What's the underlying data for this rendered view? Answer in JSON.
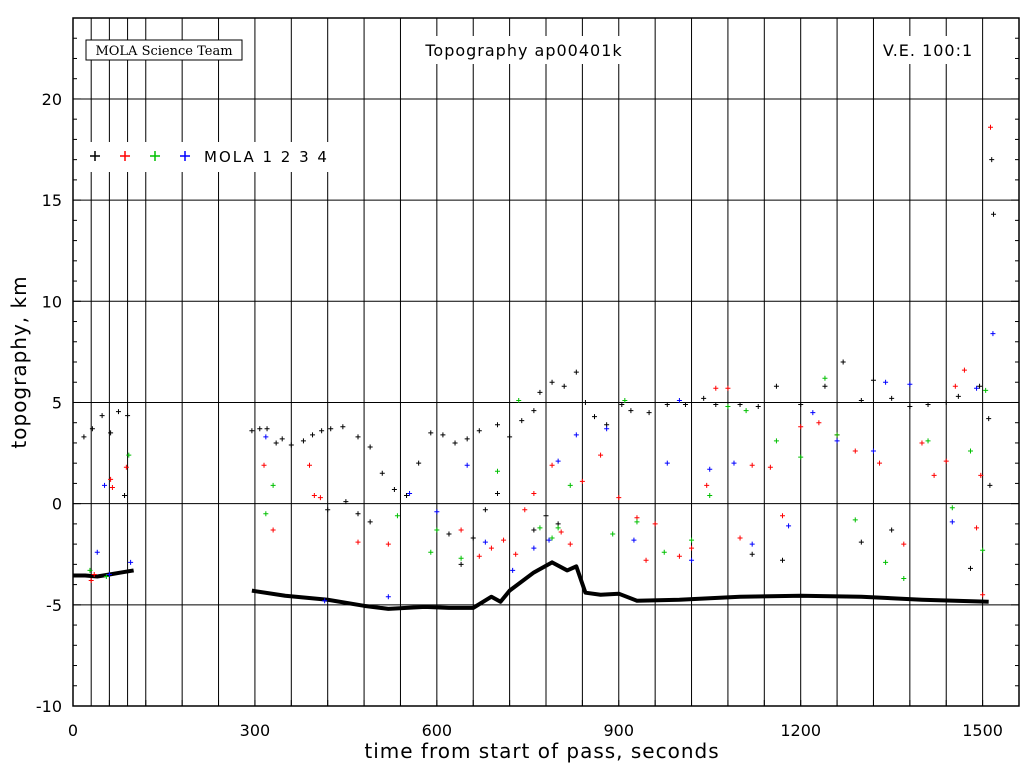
{
  "header": {
    "team_label": "MOLA Science Team",
    "title": "Topography ap00401k",
    "ve_label": "V.E. 100:1"
  },
  "legend": {
    "text": "MOLA 1 2 3 4",
    "entries": [
      {
        "name": "1",
        "color": "#000000"
      },
      {
        "name": "2",
        "color": "#ff0000"
      },
      {
        "name": "3",
        "color": "#00c000"
      },
      {
        "name": "4",
        "color": "#0000ff"
      }
    ]
  },
  "chart_data": {
    "type": "scatter",
    "title": "Topography ap00401k",
    "xlabel": "time from start of pass, seconds",
    "ylabel": "topography, km",
    "xlim": [
      0,
      1560
    ],
    "ylim": [
      -10,
      24
    ],
    "x_ticks": [
      0,
      300,
      600,
      900,
      1200,
      1500
    ],
    "y_ticks": [
      -10,
      -5,
      0,
      5,
      10,
      15,
      20
    ],
    "grid": true,
    "vertical_grid_x": [
      30,
      60,
      90,
      120,
      180,
      240,
      300,
      360,
      420,
      480,
      540,
      600,
      660,
      720,
      780,
      840,
      900,
      960,
      1020,
      1080,
      1140,
      1200,
      1260,
      1320,
      1380,
      1440,
      1500
    ],
    "ground_track": [
      [
        0,
        -3.55
      ],
      [
        20,
        -3.55
      ],
      [
        40,
        -3.6
      ],
      [
        60,
        -3.5
      ],
      [
        80,
        -3.4
      ],
      [
        100,
        -3.3
      ],
      null,
      [
        295,
        -4.3
      ],
      [
        350,
        -4.55
      ],
      [
        420,
        -4.75
      ],
      [
        480,
        -5.05
      ],
      [
        520,
        -5.2
      ],
      [
        580,
        -5.1
      ],
      [
        620,
        -5.15
      ],
      [
        660,
        -5.15
      ],
      [
        690,
        -4.6
      ],
      [
        705,
        -4.85
      ],
      [
        720,
        -4.3
      ],
      [
        760,
        -3.4
      ],
      [
        790,
        -2.9
      ],
      [
        815,
        -3.3
      ],
      [
        830,
        -3.1
      ],
      [
        845,
        -4.4
      ],
      [
        870,
        -4.5
      ],
      [
        900,
        -4.45
      ],
      [
        930,
        -4.8
      ],
      [
        1000,
        -4.75
      ],
      [
        1100,
        -4.6
      ],
      [
        1200,
        -4.55
      ],
      [
        1300,
        -4.6
      ],
      [
        1400,
        -4.75
      ],
      [
        1510,
        -4.85
      ]
    ],
    "series": [
      {
        "name": "1",
        "color": "#000000",
        "points": [
          [
            18,
            3.3
          ],
          [
            32,
            3.7
          ],
          [
            48,
            4.35
          ],
          [
            62,
            3.5
          ],
          [
            75,
            4.55
          ],
          [
            85,
            0.4
          ],
          [
            90,
            4.35
          ],
          [
            295,
            3.6
          ],
          [
            308,
            3.7
          ],
          [
            320,
            3.7
          ],
          [
            335,
            3.0
          ],
          [
            345,
            3.2
          ],
          [
            360,
            2.9
          ],
          [
            380,
            3.1
          ],
          [
            395,
            3.4
          ],
          [
            410,
            3.6
          ],
          [
            425,
            3.7
          ],
          [
            445,
            3.8
          ],
          [
            470,
            3.3
          ],
          [
            490,
            2.8
          ],
          [
            510,
            1.5
          ],
          [
            530,
            0.7
          ],
          [
            550,
            0.4
          ],
          [
            570,
            2.0
          ],
          [
            590,
            3.5
          ],
          [
            610,
            3.4
          ],
          [
            630,
            3.0
          ],
          [
            650,
            3.2
          ],
          [
            670,
            3.6
          ],
          [
            700,
            3.9
          ],
          [
            720,
            3.3
          ],
          [
            740,
            4.1
          ],
          [
            760,
            4.6
          ],
          [
            770,
            5.5
          ],
          [
            790,
            6.0
          ],
          [
            810,
            5.8
          ],
          [
            830,
            6.5
          ],
          [
            845,
            5.0
          ],
          [
            860,
            4.3
          ],
          [
            880,
            3.9
          ],
          [
            905,
            4.9
          ],
          [
            920,
            4.6
          ],
          [
            950,
            4.5
          ],
          [
            980,
            4.9
          ],
          [
            1010,
            4.9
          ],
          [
            1040,
            5.2
          ],
          [
            1060,
            4.9
          ],
          [
            1100,
            4.9
          ],
          [
            1130,
            4.8
          ],
          [
            1160,
            5.8
          ],
          [
            1200,
            4.9
          ],
          [
            1240,
            5.8
          ],
          [
            1270,
            7.0
          ],
          [
            1300,
            5.1
          ],
          [
            1320,
            6.1
          ],
          [
            1350,
            5.2
          ],
          [
            1380,
            4.8
          ],
          [
            1410,
            4.9
          ],
          [
            1440,
            5.0
          ],
          [
            1460,
            5.3
          ],
          [
            1495,
            5.8
          ],
          [
            1510,
            4.2
          ],
          [
            1515,
            17.0
          ],
          [
            1518,
            14.3
          ],
          [
            1512,
            0.9
          ],
          [
            640,
            -3.0
          ],
          [
            660,
            -1.7
          ],
          [
            680,
            -0.3
          ],
          [
            760,
            -1.3
          ],
          [
            780,
            -0.6
          ],
          [
            800,
            -1.0
          ],
          [
            420,
            -0.3
          ],
          [
            450,
            0.1
          ],
          [
            470,
            -0.5
          ],
          [
            490,
            -0.9
          ],
          [
            620,
            -1.5
          ],
          [
            700,
            0.5
          ],
          [
            1120,
            -2.5
          ],
          [
            1170,
            -2.8
          ],
          [
            1300,
            -1.9
          ],
          [
            1350,
            -1.3
          ],
          [
            1480,
            -3.2
          ]
        ]
      },
      {
        "name": "2",
        "color": "#ff0000",
        "points": [
          [
            30,
            -3.8
          ],
          [
            35,
            -3.5
          ],
          [
            62,
            1.2
          ],
          [
            65,
            0.8
          ],
          [
            88,
            1.8
          ],
          [
            315,
            1.9
          ],
          [
            330,
            -1.3
          ],
          [
            390,
            1.9
          ],
          [
            398,
            0.4
          ],
          [
            408,
            0.3
          ],
          [
            470,
            -1.9
          ],
          [
            520,
            -2.0
          ],
          [
            640,
            -1.3
          ],
          [
            670,
            -2.6
          ],
          [
            690,
            -2.2
          ],
          [
            710,
            -1.8
          ],
          [
            730,
            -2.5
          ],
          [
            745,
            -0.3
          ],
          [
            760,
            0.5
          ],
          [
            790,
            1.9
          ],
          [
            805,
            -1.4
          ],
          [
            820,
            -2.0
          ],
          [
            840,
            1.1
          ],
          [
            870,
            2.4
          ],
          [
            900,
            0.3
          ],
          [
            930,
            -0.7
          ],
          [
            945,
            -2.8
          ],
          [
            960,
            -1.0
          ],
          [
            1000,
            -2.6
          ],
          [
            1020,
            -2.2
          ],
          [
            1045,
            0.9
          ],
          [
            1060,
            5.7
          ],
          [
            1080,
            5.7
          ],
          [
            1100,
            -1.7
          ],
          [
            1120,
            1.9
          ],
          [
            1150,
            1.8
          ],
          [
            1170,
            -0.6
          ],
          [
            1200,
            3.8
          ],
          [
            1230,
            4.0
          ],
          [
            1260,
            3.4
          ],
          [
            1290,
            2.6
          ],
          [
            1330,
            2.0
          ],
          [
            1370,
            -2.0
          ],
          [
            1400,
            3.0
          ],
          [
            1420,
            1.4
          ],
          [
            1440,
            2.1
          ],
          [
            1455,
            5.8
          ],
          [
            1470,
            6.6
          ],
          [
            1490,
            -1.2
          ],
          [
            1497,
            1.4
          ],
          [
            1500,
            -4.5
          ],
          [
            1513,
            18.6
          ]
        ]
      },
      {
        "name": "3",
        "color": "#00c000",
        "points": [
          [
            28,
            -3.3
          ],
          [
            55,
            -3.6
          ],
          [
            92,
            2.4
          ],
          [
            318,
            -0.5
          ],
          [
            330,
            0.9
          ],
          [
            535,
            -0.6
          ],
          [
            590,
            -2.4
          ],
          [
            600,
            -1.3
          ],
          [
            640,
            -2.7
          ],
          [
            700,
            1.6
          ],
          [
            735,
            5.1
          ],
          [
            770,
            -1.2
          ],
          [
            790,
            -1.7
          ],
          [
            800,
            -1.2
          ],
          [
            820,
            0.9
          ],
          [
            890,
            -1.5
          ],
          [
            910,
            5.1
          ],
          [
            930,
            -0.9
          ],
          [
            975,
            -2.4
          ],
          [
            1020,
            -1.8
          ],
          [
            1050,
            0.4
          ],
          [
            1080,
            4.8
          ],
          [
            1110,
            4.6
          ],
          [
            1160,
            3.1
          ],
          [
            1200,
            2.3
          ],
          [
            1240,
            6.2
          ],
          [
            1260,
            3.4
          ],
          [
            1290,
            -0.8
          ],
          [
            1340,
            -2.9
          ],
          [
            1370,
            -3.7
          ],
          [
            1410,
            3.1
          ],
          [
            1450,
            -0.2
          ],
          [
            1480,
            2.6
          ],
          [
            1500,
            -2.3
          ],
          [
            1505,
            5.6
          ]
        ]
      },
      {
        "name": "4",
        "color": "#0000ff",
        "points": [
          [
            40,
            -2.4
          ],
          [
            52,
            0.9
          ],
          [
            60,
            -3.5
          ],
          [
            95,
            -2.9
          ],
          [
            318,
            3.3
          ],
          [
            415,
            -4.8
          ],
          [
            520,
            -4.6
          ],
          [
            555,
            0.5
          ],
          [
            600,
            -0.4
          ],
          [
            650,
            1.9
          ],
          [
            680,
            -1.9
          ],
          [
            725,
            -3.3
          ],
          [
            760,
            -2.2
          ],
          [
            785,
            -1.8
          ],
          [
            800,
            2.1
          ],
          [
            830,
            3.4
          ],
          [
            880,
            3.7
          ],
          [
            925,
            -1.8
          ],
          [
            980,
            2.0
          ],
          [
            1000,
            5.1
          ],
          [
            1020,
            -2.8
          ],
          [
            1050,
            1.7
          ],
          [
            1090,
            2.0
          ],
          [
            1120,
            -2.0
          ],
          [
            1180,
            -1.1
          ],
          [
            1220,
            4.5
          ],
          [
            1260,
            3.1
          ],
          [
            1320,
            2.6
          ],
          [
            1340,
            6.0
          ],
          [
            1380,
            5.9
          ],
          [
            1450,
            -0.9
          ],
          [
            1490,
            5.7
          ],
          [
            1517,
            8.4
          ]
        ]
      }
    ]
  }
}
